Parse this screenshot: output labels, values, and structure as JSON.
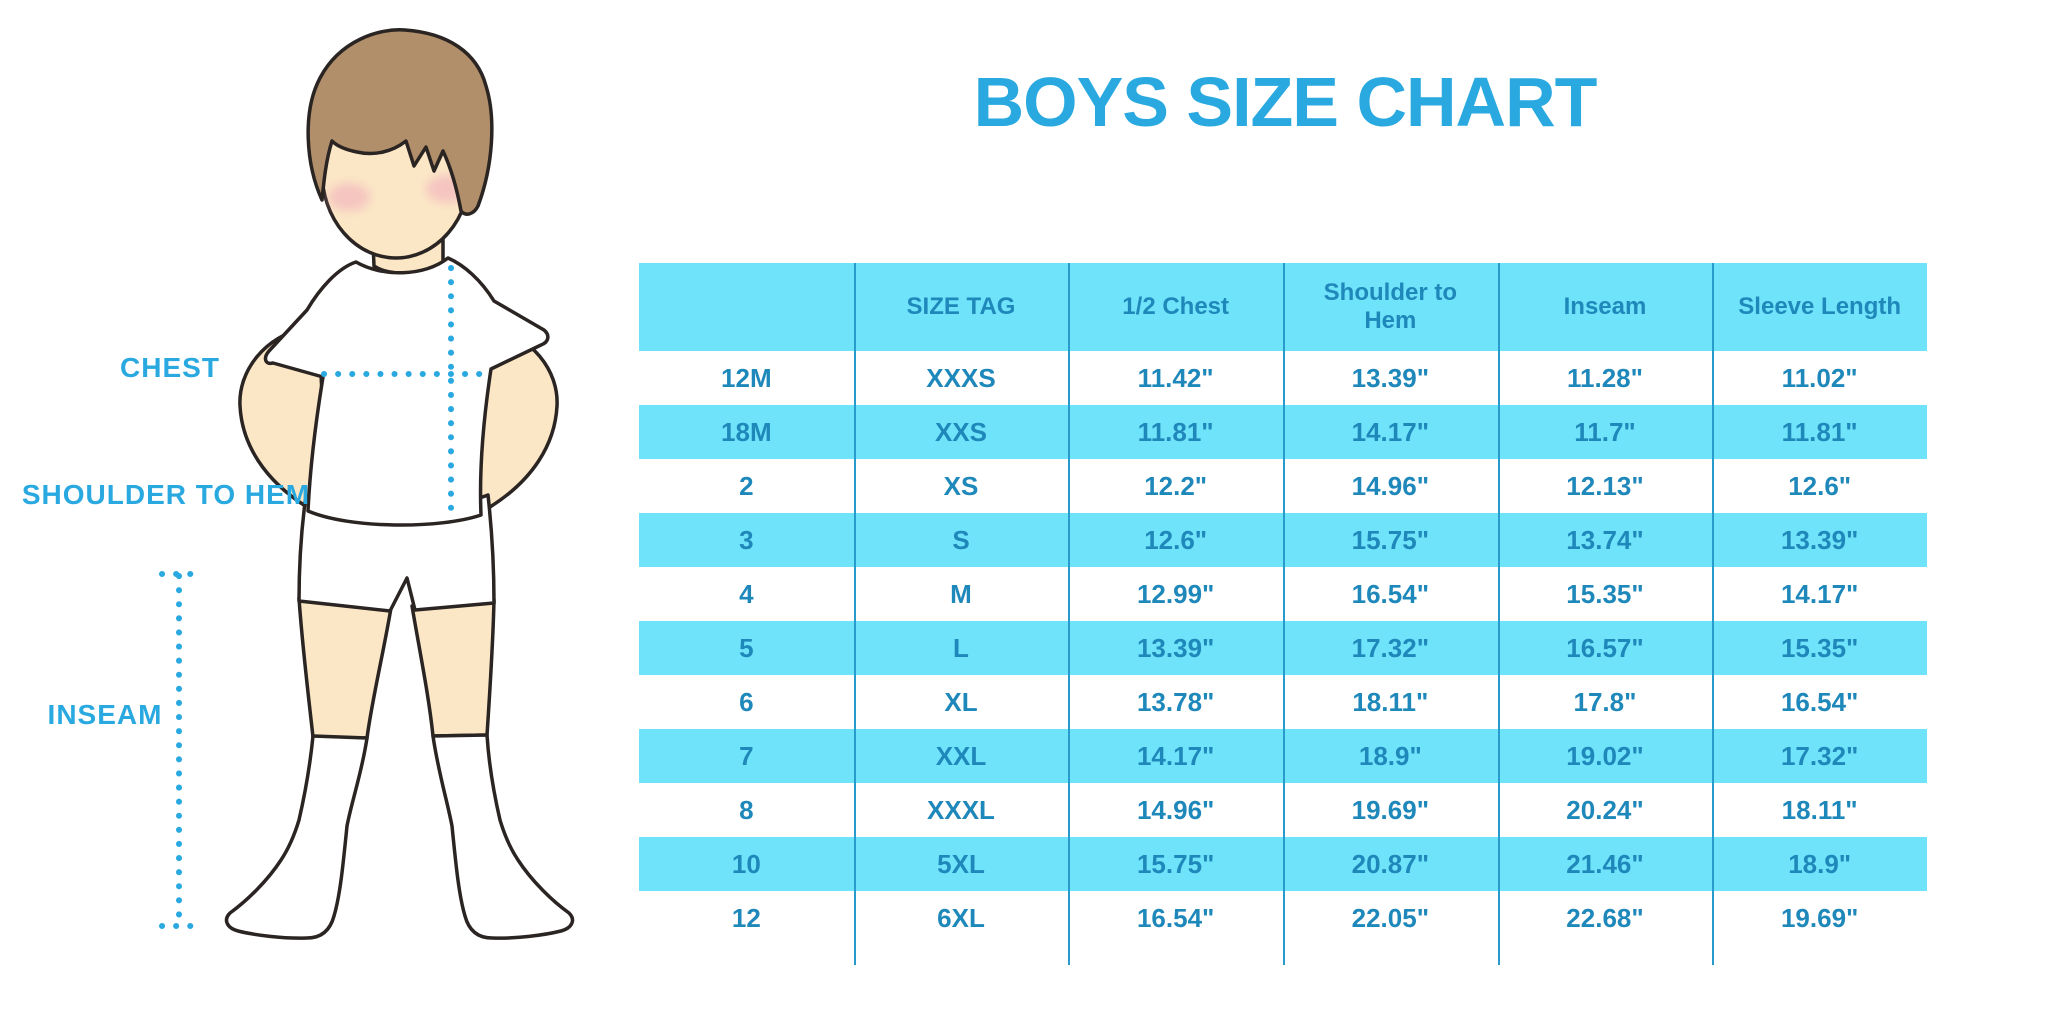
{
  "title": "BOYS SIZE CHART",
  "figure": {
    "chest_label": "CHEST",
    "shoulder_to_hem_label": "SHOULDER TO HEM",
    "inseam_label": "INSEAM"
  },
  "chart_data": {
    "type": "table",
    "title": "BOYS SIZE CHART",
    "units": "inches",
    "columns": [
      "",
      "SIZE TAG",
      "1/2 Chest",
      "Shoulder to Hem",
      "Inseam",
      "Sleeve Length"
    ],
    "rows": [
      [
        "12M",
        "XXXS",
        "11.42\"",
        "13.39\"",
        "11.28\"",
        "11.02\""
      ],
      [
        "18M",
        "XXS",
        "11.81\"",
        "14.17\"",
        "11.7\"",
        "11.81\""
      ],
      [
        "2",
        "XS",
        "12.2\"",
        "14.96\"",
        "12.13\"",
        "12.6\""
      ],
      [
        "3",
        "S",
        "12.6\"",
        "15.75\"",
        "13.74\"",
        "13.39\""
      ],
      [
        "4",
        "M",
        "12.99\"",
        "16.54\"",
        "15.35\"",
        "14.17\""
      ],
      [
        "5",
        "L",
        "13.39\"",
        "17.32\"",
        "16.57\"",
        "15.35\""
      ],
      [
        "6",
        "XL",
        "13.78\"",
        "18.11\"",
        "17.8\"",
        "16.54\""
      ],
      [
        "7",
        "XXL",
        "14.17\"",
        "18.9\"",
        "19.02\"",
        "17.32\""
      ],
      [
        "8",
        "XXXL",
        "14.96\"",
        "19.69\"",
        "20.24\"",
        "18.11\""
      ],
      [
        "10",
        "5XL",
        "15.75\"",
        "20.87\"",
        "21.46\"",
        "18.9\""
      ],
      [
        "12",
        "6XL",
        "16.54\"",
        "22.05\"",
        "22.68\"",
        "19.69\""
      ]
    ],
    "row_highlight_note": "header and every second data row (18M, 3, 5, 7, 10) have a cyan background"
  },
  "colors": {
    "title_blue": "#29A9E0",
    "header_bg": "#6FE3FA",
    "row_alt_bg": "#6FE3FA",
    "table_text": "#1F88BA",
    "grid_line": "#289BCD",
    "label_blue": "#29A9E0",
    "skin": "#FBE7C6",
    "hair": "#B18F6A",
    "blush": "#F0A8BB",
    "outline": "#2A2422"
  }
}
